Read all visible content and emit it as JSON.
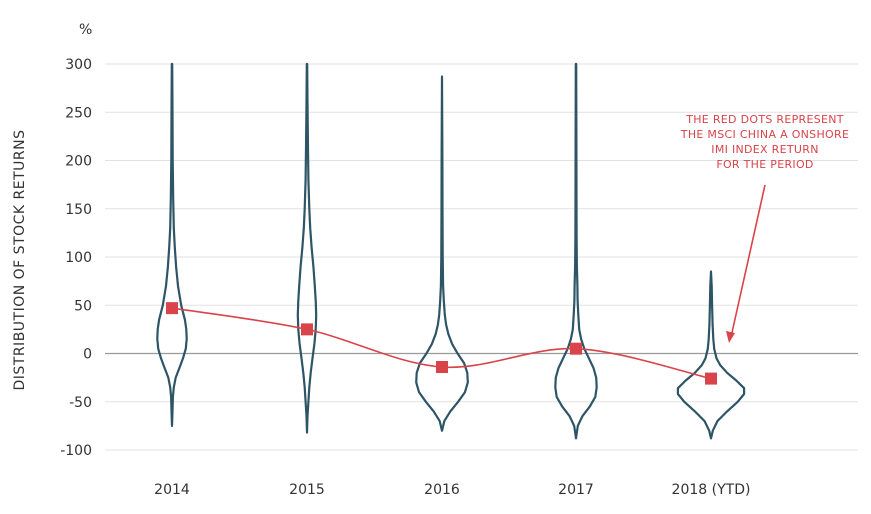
{
  "chart_data": {
    "type": "violin",
    "unit_label": "%",
    "ylabel": "DISTRIBUTION OF STOCK RETURNS",
    "ylim": [
      -100,
      300
    ],
    "yticks": [
      300,
      250,
      200,
      150,
      100,
      50,
      0,
      -50,
      -100
    ],
    "categories": [
      "2014",
      "2015",
      "2016",
      "2017",
      "2018 (YTD)"
    ],
    "index_returns": [
      47,
      25,
      -14,
      5,
      -26
    ],
    "annotation": [
      "THE RED DOTS REPRESENT",
      "THE MSCI CHINA A ONSHORE",
      "IMI INDEX RETURN",
      "FOR THE PERIOD"
    ],
    "grid": "horizontal",
    "colors": {
      "violin": "#2e5566",
      "index": "#d9434a",
      "grid": "#e2e2e2"
    },
    "distributions": [
      {
        "range": [
          -75,
          300
        ],
        "profile": [
          [
            -75,
            0
          ],
          [
            -60,
            1
          ],
          [
            -45,
            2
          ],
          [
            -35,
            4
          ],
          [
            -25,
            8
          ],
          [
            -15,
            16
          ],
          [
            -5,
            24
          ],
          [
            5,
            30
          ],
          [
            15,
            32
          ],
          [
            25,
            31
          ],
          [
            35,
            28
          ],
          [
            50,
            20
          ],
          [
            70,
            13
          ],
          [
            90,
            9
          ],
          [
            110,
            6
          ],
          [
            130,
            4
          ],
          [
            160,
            2.5
          ],
          [
            200,
            1.5
          ],
          [
            250,
            1
          ],
          [
            300,
            0.5
          ]
        ]
      },
      {
        "range": [
          -82,
          300
        ],
        "profile": [
          [
            -82,
            0
          ],
          [
            -65,
            1
          ],
          [
            -50,
            3
          ],
          [
            -35,
            5
          ],
          [
            -20,
            8
          ],
          [
            -5,
            12
          ],
          [
            10,
            16
          ],
          [
            25,
            19
          ],
          [
            40,
            20
          ],
          [
            55,
            19
          ],
          [
            70,
            17
          ],
          [
            90,
            14
          ],
          [
            110,
            10
          ],
          [
            130,
            7
          ],
          [
            150,
            5
          ],
          [
            180,
            3
          ],
          [
            220,
            2
          ],
          [
            260,
            1
          ],
          [
            300,
            0.5
          ]
        ]
      },
      {
        "range": [
          -80,
          287
        ],
        "profile": [
          [
            -80,
            0
          ],
          [
            -70,
            5
          ],
          [
            -60,
            18
          ],
          [
            -50,
            35
          ],
          [
            -40,
            50
          ],
          [
            -30,
            56
          ],
          [
            -20,
            55
          ],
          [
            -10,
            48
          ],
          [
            0,
            34
          ],
          [
            10,
            22
          ],
          [
            20,
            14
          ],
          [
            30,
            9
          ],
          [
            40,
            6
          ],
          [
            55,
            4
          ],
          [
            70,
            2.5
          ],
          [
            100,
            1.5
          ],
          [
            150,
            1
          ],
          [
            200,
            0.8
          ],
          [
            287,
            0
          ]
        ]
      },
      {
        "range": [
          -88,
          300
        ],
        "profile": [
          [
            -88,
            0
          ],
          [
            -75,
            4
          ],
          [
            -65,
            14
          ],
          [
            -55,
            30
          ],
          [
            -45,
            42
          ],
          [
            -35,
            45
          ],
          [
            -25,
            44
          ],
          [
            -15,
            38
          ],
          [
            -5,
            28
          ],
          [
            5,
            18
          ],
          [
            15,
            11
          ],
          [
            25,
            7
          ],
          [
            40,
            5
          ],
          [
            55,
            3.5
          ],
          [
            70,
            3
          ],
          [
            90,
            2
          ],
          [
            120,
            1.2
          ],
          [
            160,
            1
          ],
          [
            220,
            0.8
          ],
          [
            300,
            0.5
          ]
        ]
      },
      {
        "range": [
          -88,
          85
        ],
        "profile": [
          [
            -88,
            0
          ],
          [
            -80,
            4
          ],
          [
            -70,
            14
          ],
          [
            -60,
            35
          ],
          [
            -50,
            58
          ],
          [
            -42,
            72
          ],
          [
            -36,
            72
          ],
          [
            -28,
            55
          ],
          [
            -20,
            35
          ],
          [
            -12,
            20
          ],
          [
            -5,
            12
          ],
          [
            5,
            7
          ],
          [
            15,
            5
          ],
          [
            30,
            3.5
          ],
          [
            50,
            2.5
          ],
          [
            70,
            1.5
          ],
          [
            85,
            0
          ]
        ]
      }
    ]
  }
}
